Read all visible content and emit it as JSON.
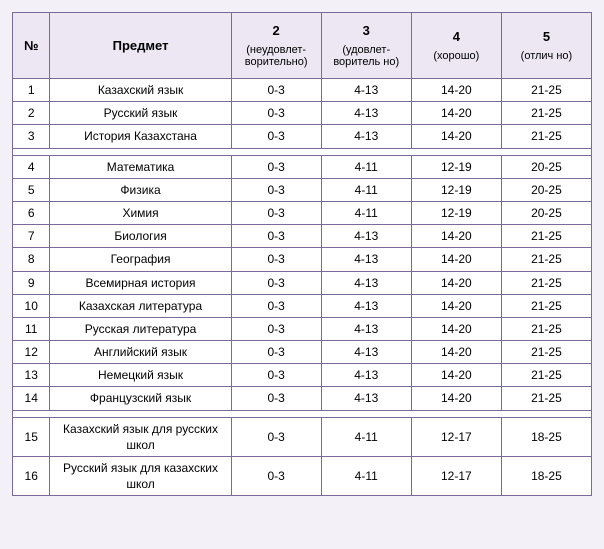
{
  "header": {
    "num": "№",
    "subject": "Предмет",
    "col2_main": "2",
    "col2_sub": "(неудовлет-ворительно)",
    "col3_main": "3",
    "col3_sub": "(удовлет-воритель но)",
    "col4_main": "4",
    "col4_sub": "(хорошо)",
    "col5_main": "5",
    "col5_sub": "(отлич но)"
  },
  "rows": [
    {
      "n": "1",
      "subject": "Казахский язык",
      "c2": "0-3",
      "c3": "4-13",
      "c4": "14-20",
      "c5": "21-25"
    },
    {
      "n": "2",
      "subject": "Русский язык",
      "c2": "0-3",
      "c3": "4-13",
      "c4": "14-20",
      "c5": "21-25"
    },
    {
      "n": "3",
      "subject": "История Казахстана",
      "c2": "0-3",
      "c3": "4-13",
      "c4": "14-20",
      "c5": "21-25"
    },
    {
      "n": "4",
      "subject": "Математика",
      "c2": "0-3",
      "c3": "4-11",
      "c4": "12-19",
      "c5": "20-25"
    },
    {
      "n": "5",
      "subject": "Физика",
      "c2": "0-3",
      "c3": "4-11",
      "c4": "12-19",
      "c5": "20-25"
    },
    {
      "n": "6",
      "subject": "Химия",
      "c2": "0-3",
      "c3": "4-11",
      "c4": "12-19",
      "c5": "20-25"
    },
    {
      "n": "7",
      "subject": "Биология",
      "c2": "0-3",
      "c3": "4-13",
      "c4": "14-20",
      "c5": "21-25"
    },
    {
      "n": "8",
      "subject": "География",
      "c2": "0-3",
      "c3": "4-13",
      "c4": "14-20",
      "c5": "21-25"
    },
    {
      "n": "9",
      "subject": "Всемирная история",
      "c2": "0-3",
      "c3": "4-13",
      "c4": "14-20",
      "c5": "21-25"
    },
    {
      "n": "10",
      "subject": "Казахская литература",
      "c2": "0-3",
      "c3": "4-13",
      "c4": "14-20",
      "c5": "21-25"
    },
    {
      "n": "11",
      "subject": "Русская литература",
      "c2": "0-3",
      "c3": "4-13",
      "c4": "14-20",
      "c5": "21-25"
    },
    {
      "n": "12",
      "subject": "Английский язык",
      "c2": "0-3",
      "c3": "4-13",
      "c4": "14-20",
      "c5": "21-25"
    },
    {
      "n": "13",
      "subject": "Немецкий язык",
      "c2": "0-3",
      "c3": "4-13",
      "c4": "14-20",
      "c5": "21-25"
    },
    {
      "n": "14",
      "subject": "Французский язык",
      "c2": "0-3",
      "c3": "4-13",
      "c4": "14-20",
      "c5": "21-25"
    },
    {
      "n": "15",
      "subject": "Казахский язык для русских школ",
      "c2": "0-3",
      "c3": "4-11",
      "c4": "12-17",
      "c5": "18-25"
    },
    {
      "n": "16",
      "subject": "Русский язык для казахских школ",
      "c2": "0-3",
      "c3": "4-11",
      "c4": "12-17",
      "c5": "18-25"
    }
  ],
  "style": {
    "border_color": "#7a6a9a",
    "header_bg": "#ede7f3",
    "body_bg": "#ffffff",
    "page_bg": "#f4f0f8",
    "header_fontsize": 13,
    "body_fontsize": 12,
    "spacer_after": [
      2,
      13
    ]
  }
}
